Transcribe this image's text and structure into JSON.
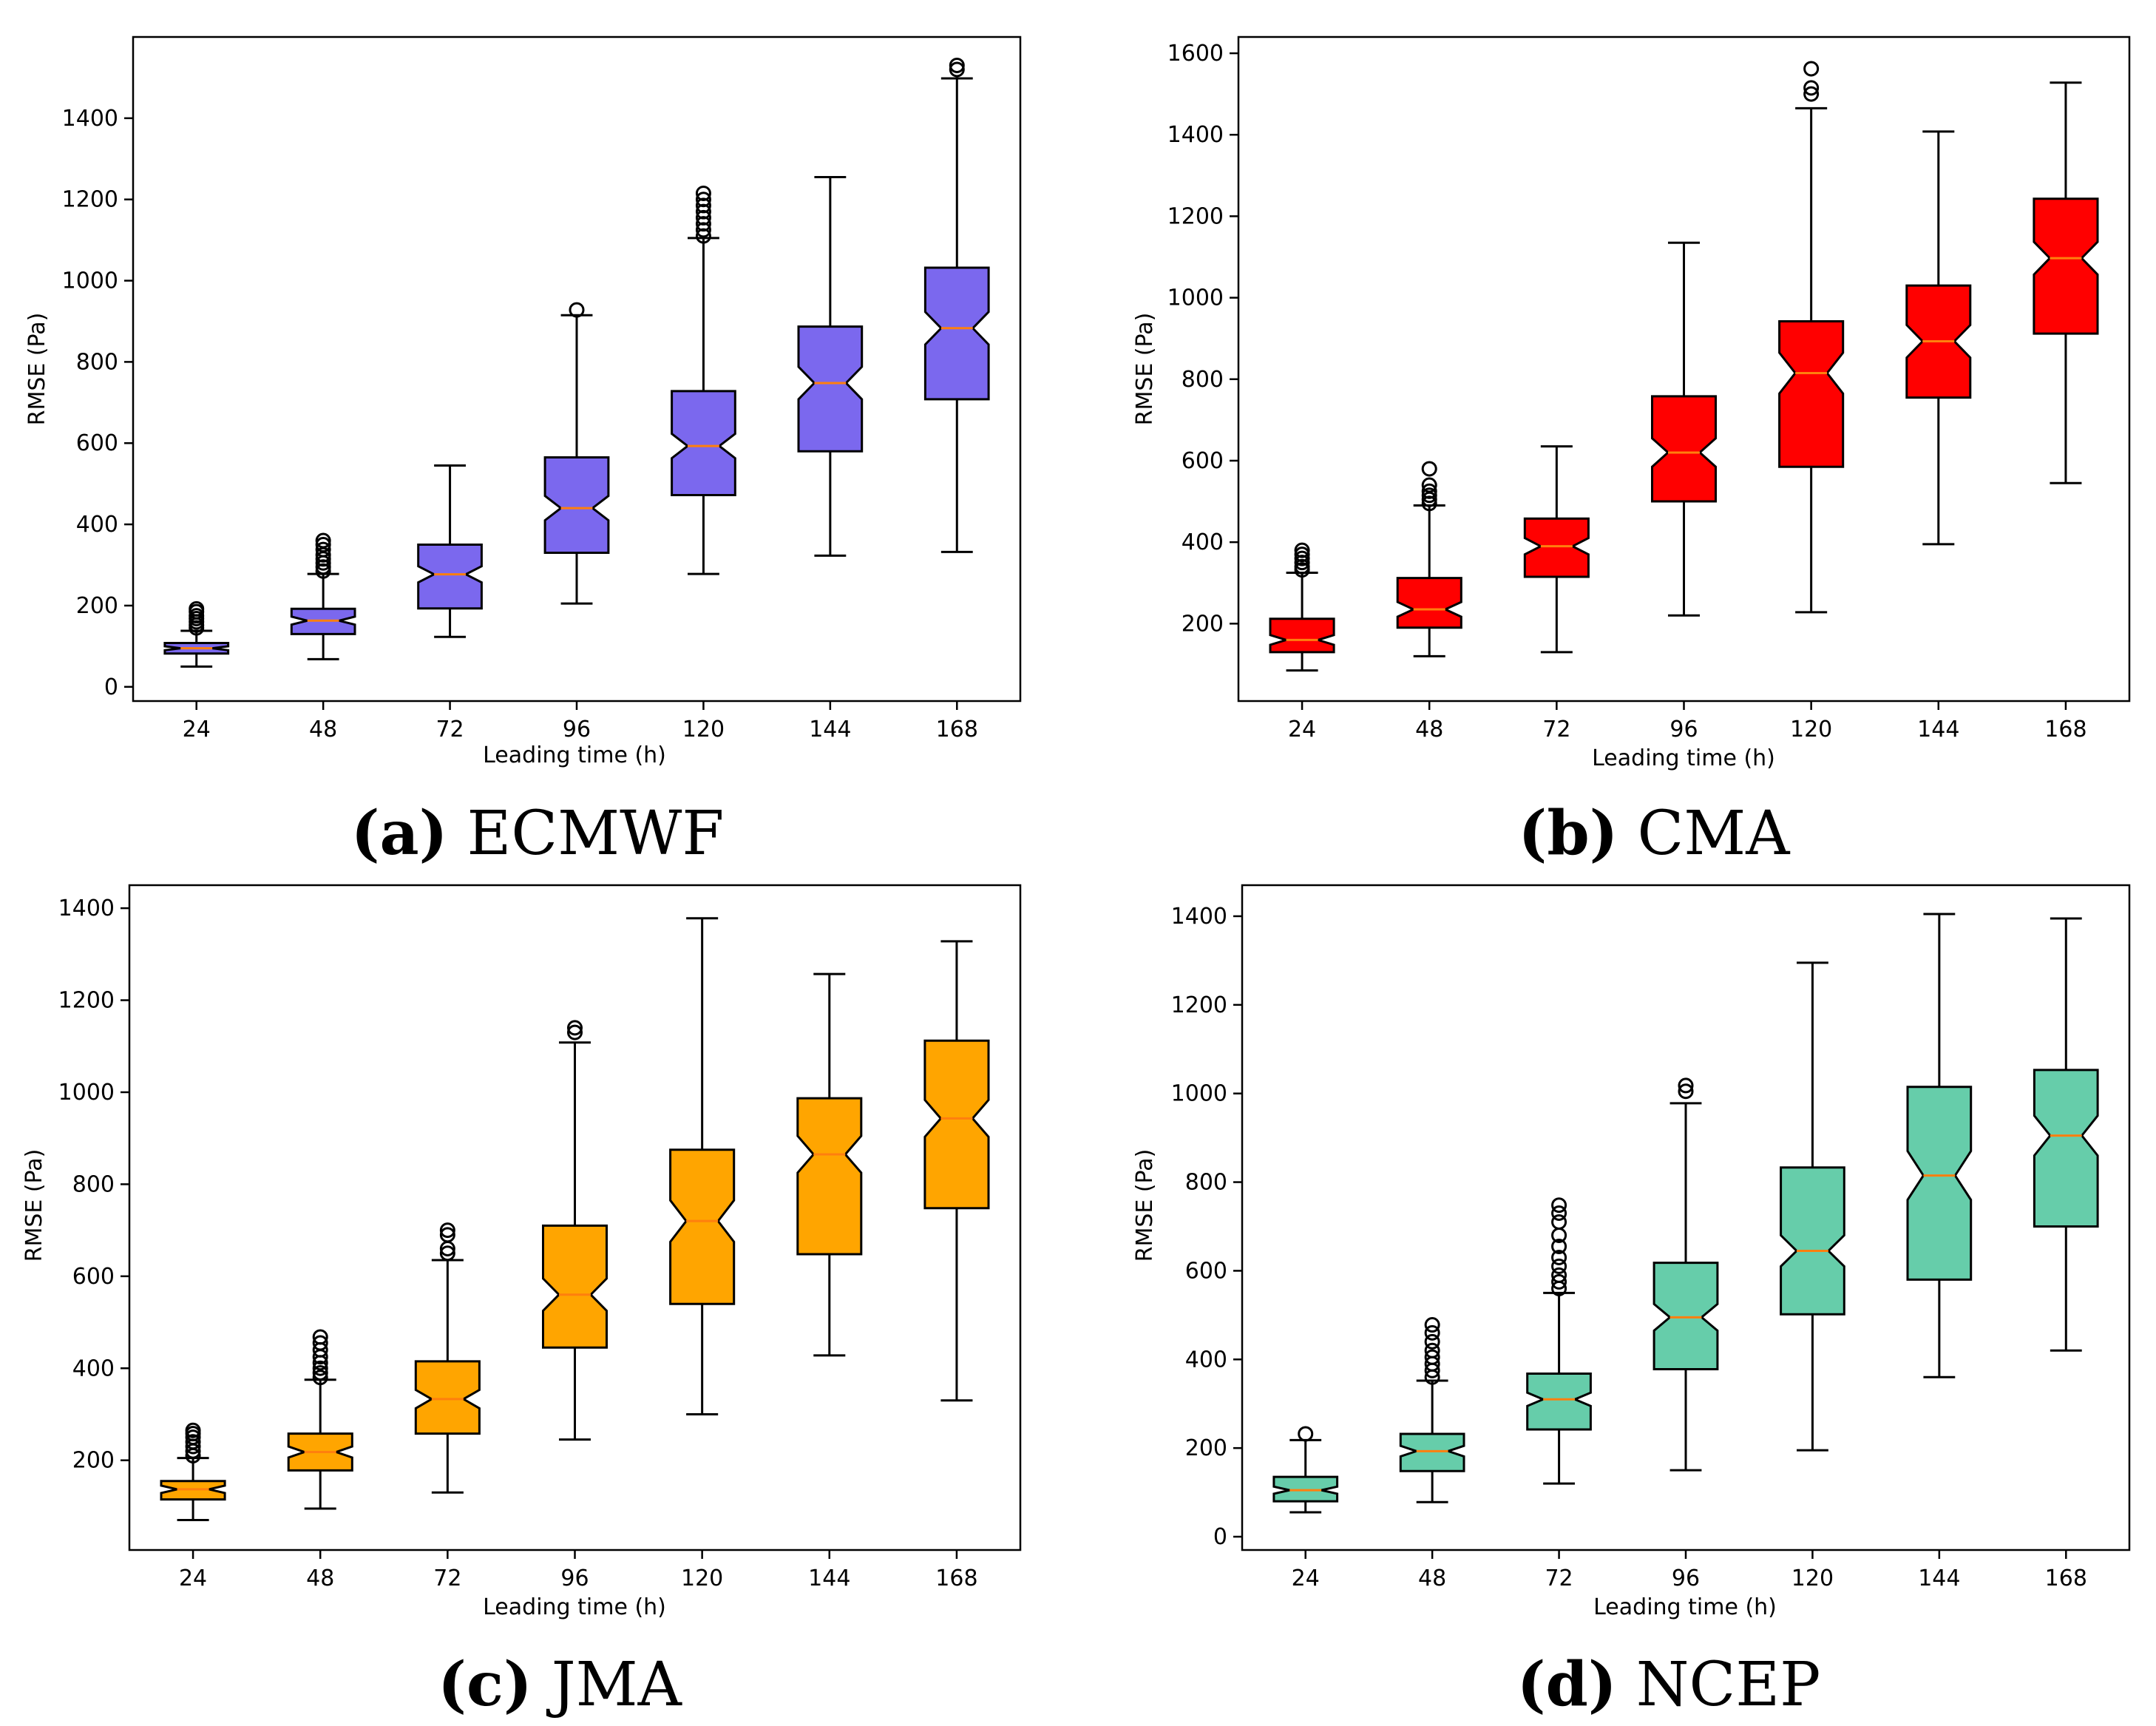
{
  "chart_data": [
    {
      "type": "boxplot",
      "notched": true,
      "title": "",
      "caption_letter": "(a)",
      "caption_name": "ECMWF",
      "xlabel": "Leading time (h)",
      "ylabel": "RMSE (Pa)",
      "categories": [
        "24",
        "48",
        "72",
        "96",
        "120",
        "144",
        "168"
      ],
      "yticks": [
        0,
        200,
        400,
        600,
        800,
        1000,
        1200,
        1400
      ],
      "ylim": [
        -35,
        1600
      ],
      "box_color": "#7b68ee",
      "median_color": "#ff7f0e",
      "boxes": [
        {
          "whislo": 50,
          "q1": 82,
          "med": 95,
          "q3": 108,
          "whishi": 138,
          "notch": 5,
          "fliers": [
            145,
            152,
            160,
            168,
            175,
            185,
            192
          ]
        },
        {
          "whislo": 68,
          "q1": 130,
          "med": 163,
          "q3": 192,
          "whishi": 278,
          "notch": 10,
          "fliers": [
            285,
            295,
            305,
            315,
            325,
            338,
            350,
            360
          ]
        },
        {
          "whislo": 123,
          "q1": 193,
          "med": 277,
          "q3": 350,
          "whishi": 545,
          "notch": 20,
          "fliers": []
        },
        {
          "whislo": 205,
          "q1": 330,
          "med": 440,
          "q3": 565,
          "whishi": 915,
          "notch": 30,
          "fliers": [
            928
          ]
        },
        {
          "whislo": 278,
          "q1": 472,
          "med": 593,
          "q3": 728,
          "whishi": 1105,
          "notch": 30,
          "fliers": [
            1110,
            1125,
            1140,
            1155,
            1170,
            1185,
            1200,
            1215
          ]
        },
        {
          "whislo": 323,
          "q1": 580,
          "med": 748,
          "q3": 887,
          "whishi": 1255,
          "notch": 40,
          "fliers": []
        },
        {
          "whislo": 332,
          "q1": 708,
          "med": 883,
          "q3": 1032,
          "whishi": 1498,
          "notch": 40,
          "fliers": [
            1520,
            1530
          ]
        }
      ]
    },
    {
      "type": "boxplot",
      "notched": true,
      "title": "",
      "caption_letter": "(b)",
      "caption_name": "CMA",
      "xlabel": "Leading time (h)",
      "ylabel": "RMSE (Pa)",
      "categories": [
        "24",
        "48",
        "72",
        "96",
        "120",
        "144",
        "168"
      ],
      "yticks": [
        200,
        400,
        600,
        800,
        1000,
        1200,
        1400,
        1600
      ],
      "ylim": [
        10,
        1640
      ],
      "box_color": "#ff0000",
      "median_color": "#ff7f0e",
      "boxes": [
        {
          "whislo": 85,
          "q1": 130,
          "med": 160,
          "q3": 212,
          "whishi": 325,
          "notch": 12,
          "fliers": [
            332,
            340,
            350,
            360,
            370,
            380
          ]
        },
        {
          "whislo": 120,
          "q1": 190,
          "med": 235,
          "q3": 312,
          "whishi": 490,
          "notch": 18,
          "fliers": [
            495,
            505,
            515,
            525,
            540,
            580
          ]
        },
        {
          "whislo": 130,
          "q1": 315,
          "med": 390,
          "q3": 458,
          "whishi": 635,
          "notch": 20,
          "fliers": []
        },
        {
          "whislo": 220,
          "q1": 500,
          "med": 620,
          "q3": 758,
          "whishi": 1135,
          "notch": 35,
          "fliers": []
        },
        {
          "whislo": 228,
          "q1": 585,
          "med": 815,
          "q3": 942,
          "whishi": 1465,
          "notch": 50,
          "fliers": [
            1500,
            1515,
            1562
          ]
        },
        {
          "whislo": 395,
          "q1": 755,
          "med": 893,
          "q3": 1030,
          "whishi": 1408,
          "notch": 40,
          "fliers": []
        },
        {
          "whislo": 545,
          "q1": 912,
          "med": 1097,
          "q3": 1243,
          "whishi": 1528,
          "notch": 40,
          "fliers": []
        }
      ]
    },
    {
      "type": "boxplot",
      "notched": true,
      "title": "",
      "caption_letter": "(c)",
      "caption_name": "JMA",
      "xlabel": "Leading time (h)",
      "ylabel": "RMSE (Pa)",
      "categories": [
        "24",
        "48",
        "72",
        "96",
        "120",
        "144",
        "168"
      ],
      "yticks": [
        200,
        400,
        600,
        800,
        1000,
        1200,
        1400
      ],
      "ylim": [
        5,
        1450
      ],
      "box_color": "#ffa500",
      "median_color": "#ff7f0e",
      "boxes": [
        {
          "whislo": 70,
          "q1": 115,
          "med": 137,
          "q3": 155,
          "whishi": 205,
          "notch": 8,
          "fliers": [
            210,
            220,
            230,
            240,
            250,
            258,
            265
          ]
        },
        {
          "whislo": 95,
          "q1": 178,
          "med": 218,
          "q3": 258,
          "whishi": 375,
          "notch": 12,
          "fliers": [
            380,
            390,
            400,
            412,
            425,
            440,
            455,
            468
          ]
        },
        {
          "whislo": 130,
          "q1": 258,
          "med": 333,
          "q3": 415,
          "whishi": 635,
          "notch": 20,
          "fliers": [
            650,
            660,
            690,
            700
          ]
        },
        {
          "whislo": 245,
          "q1": 445,
          "med": 560,
          "q3": 710,
          "whishi": 1108,
          "notch": 35,
          "fliers": [
            1130,
            1140
          ]
        },
        {
          "whislo": 300,
          "q1": 540,
          "med": 720,
          "q3": 875,
          "whishi": 1378,
          "notch": 45,
          "fliers": []
        },
        {
          "whislo": 428,
          "q1": 648,
          "med": 865,
          "q3": 987,
          "whishi": 1257,
          "notch": 40,
          "fliers": []
        },
        {
          "whislo": 330,
          "q1": 748,
          "med": 943,
          "q3": 1112,
          "whishi": 1328,
          "notch": 40,
          "fliers": []
        }
      ]
    },
    {
      "type": "boxplot",
      "notched": true,
      "title": "",
      "caption_letter": "(d)",
      "caption_name": "NCEP",
      "xlabel": "Leading time (h)",
      "ylabel": "RMSE (Pa)",
      "categories": [
        "24",
        "48",
        "72",
        "96",
        "120",
        "144",
        "168"
      ],
      "yticks": [
        0,
        200,
        400,
        600,
        800,
        1000,
        1200,
        1400
      ],
      "ylim": [
        -30,
        1470
      ],
      "box_color": "#66cdaa",
      "median_color": "#ff7f0e",
      "boxes": [
        {
          "whislo": 55,
          "q1": 80,
          "med": 105,
          "q3": 135,
          "whishi": 218,
          "notch": 8,
          "fliers": [
            232
          ]
        },
        {
          "whislo": 78,
          "q1": 148,
          "med": 193,
          "q3": 232,
          "whishi": 352,
          "notch": 12,
          "fliers": [
            360,
            375,
            390,
            405,
            420,
            440,
            460,
            478
          ]
        },
        {
          "whislo": 120,
          "q1": 242,
          "med": 310,
          "q3": 368,
          "whishi": 550,
          "notch": 15,
          "fliers": [
            560,
            575,
            590,
            610,
            630,
            655,
            680,
            710,
            730,
            748
          ]
        },
        {
          "whislo": 150,
          "q1": 378,
          "med": 495,
          "q3": 618,
          "whishi": 978,
          "notch": 30,
          "fliers": [
            1005,
            1018
          ]
        },
        {
          "whislo": 195,
          "q1": 502,
          "med": 645,
          "q3": 833,
          "whishi": 1295,
          "notch": 35,
          "fliers": []
        },
        {
          "whislo": 360,
          "q1": 580,
          "med": 815,
          "q3": 1015,
          "whishi": 1405,
          "notch": 55,
          "fliers": []
        },
        {
          "whislo": 420,
          "q1": 700,
          "med": 905,
          "q3": 1053,
          "whishi": 1395,
          "notch": 45,
          "fliers": []
        }
      ]
    }
  ]
}
